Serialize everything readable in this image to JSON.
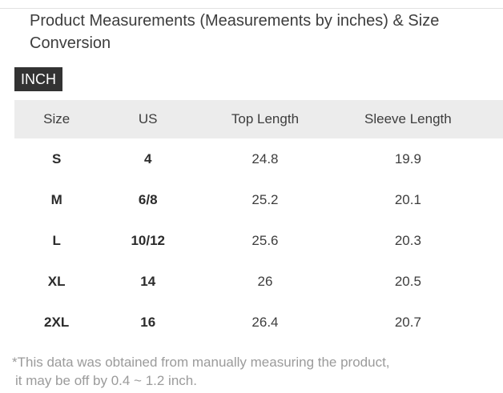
{
  "page": {
    "title": "Product Measurements (Measurements by inches) & Size Conversion",
    "unit_badge_label": "INCH"
  },
  "table": {
    "columns": [
      "Size",
      "US",
      "Top Length",
      "Sleeve Length"
    ],
    "rows": [
      {
        "size": "S",
        "us": "4",
        "top_length": "24.8",
        "sleeve_length": "19.9"
      },
      {
        "size": "M",
        "us": "6/8",
        "top_length": "25.2",
        "sleeve_length": "20.1"
      },
      {
        "size": "L",
        "us": "10/12",
        "top_length": "25.6",
        "sleeve_length": "20.3"
      },
      {
        "size": "XL",
        "us": "14",
        "top_length": "26",
        "sleeve_length": "20.5"
      },
      {
        "size": "2XL",
        "us": "16",
        "top_length": "26.4",
        "sleeve_length": "20.7"
      }
    ]
  },
  "footnote": {
    "line1": "*This data was obtained from manually measuring the product,",
    "line2": "it may be off by 0.4 ~ 1.2 inch."
  },
  "colors": {
    "badge_bg": "#333333",
    "badge_text": "#ffffff",
    "header_bg": "#ececec",
    "text": "#3d3d3d",
    "bold_text": "#2b2b2b",
    "muted_text": "#9b9b9b",
    "divider": "#e2e2e2"
  }
}
